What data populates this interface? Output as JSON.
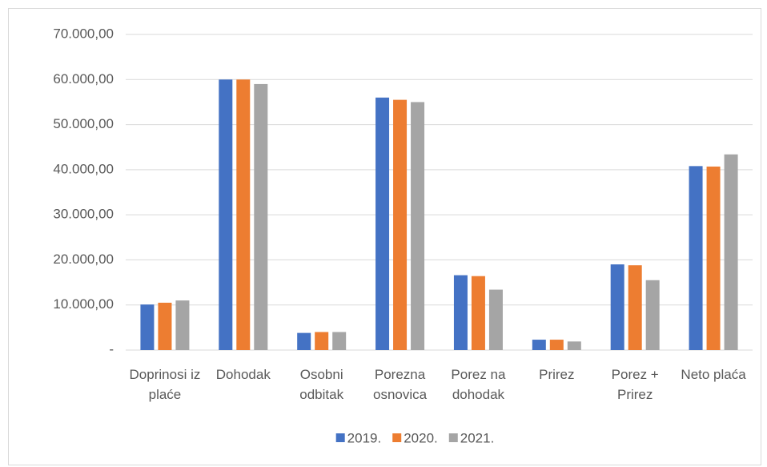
{
  "chart_data": {
    "type": "bar",
    "categories": [
      "Doprinosi iz plaće",
      "Dohodak",
      "Osobni odbitak",
      "Porezna osnovica",
      "Porez na dohodak",
      "Prirez",
      "Porez + Prirez",
      "Neto plaća"
    ],
    "series": [
      {
        "name": "2019.",
        "color": "#4472c4",
        "values": [
          10100,
          60000,
          3800,
          56000,
          16600,
          2300,
          19000,
          40800
        ]
      },
      {
        "name": "2020.",
        "color": "#ed7d31",
        "values": [
          10500,
          60000,
          4000,
          55500,
          16400,
          2300,
          18800,
          40700
        ]
      },
      {
        "name": "2021.",
        "color": "#a5a5a5",
        "values": [
          11000,
          59000,
          4000,
          55000,
          13400,
          1900,
          15500,
          43400
        ]
      }
    ],
    "ylim": [
      0,
      70000
    ],
    "yticks": [
      {
        "value": 0,
        "label": "-"
      },
      {
        "value": 10000,
        "label": "10.000,00"
      },
      {
        "value": 20000,
        "label": "20.000,00"
      },
      {
        "value": 30000,
        "label": "30.000,00"
      },
      {
        "value": 40000,
        "label": "40.000,00"
      },
      {
        "value": 50000,
        "label": "50.000,00"
      },
      {
        "value": 60000,
        "label": "60.000,00"
      },
      {
        "value": 70000,
        "label": "70.000,00"
      }
    ],
    "grid": true,
    "legend": "bottom"
  }
}
